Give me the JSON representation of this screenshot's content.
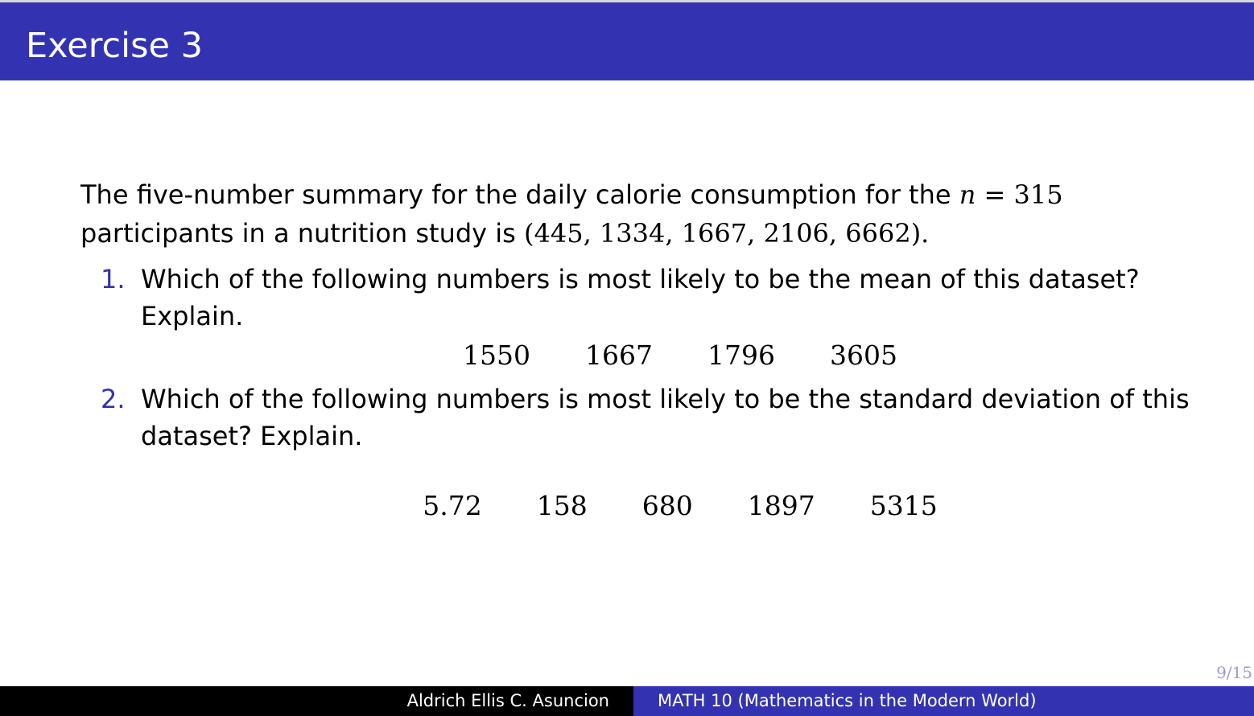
{
  "slide": {
    "title": "Exercise 3",
    "intro_text_1": "The five-number summary for the daily calorie consumption for the ",
    "intro_math_n": "n",
    "intro_math_eq": " = 315",
    "intro_text_2": "participants in a nutrition study is ",
    "intro_summary": "(445, 1334, 1667, 2106, 6662)",
    "intro_text_3": ".",
    "questions": [
      {
        "number": "1.",
        "text": "Which of the following numbers is most likely to be the mean of this dataset? Explain.",
        "options": [
          "1550",
          "1667",
          "1796",
          "3605"
        ]
      },
      {
        "number": "2.",
        "text": "Which of the following numbers is most likely to be the standard deviation of this dataset? Explain.",
        "options": [
          "5.72",
          "158",
          "680",
          "1897",
          "5315"
        ]
      }
    ],
    "page_number": "9/15"
  },
  "footer": {
    "author": "Aldrich Ellis C. Asuncion",
    "course": "MATH 10 (Mathematics in the Modern World)"
  },
  "colors": {
    "theme_blue": "#3333b2",
    "footer_black": "#000000"
  }
}
